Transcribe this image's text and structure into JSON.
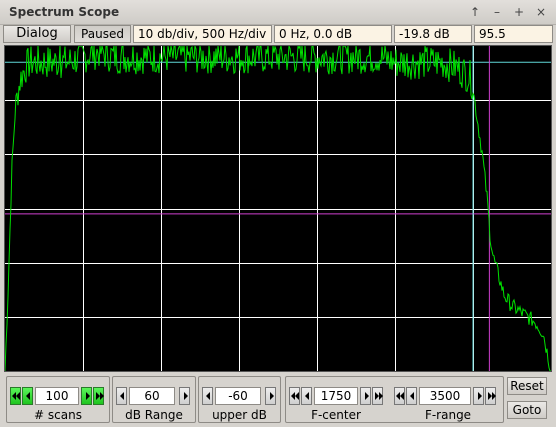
{
  "window": {
    "title": "Spectrum Scope",
    "controls": [
      "↑",
      "–",
      "+",
      "×"
    ]
  },
  "toolbar": {
    "dialog_label": "Dialog",
    "paused_label": "Paused",
    "scale_readout": "10 db/div, 500 Hz/div",
    "cursor_readout": "0 Hz, 0.0 dB",
    "level_readout": "-19.8 dB",
    "value_readout": "95.5"
  },
  "controls": {
    "scans": {
      "value": "100",
      "label": "# scans"
    },
    "db_range": {
      "value": "60",
      "label": "dB Range"
    },
    "upper_db": {
      "value": "-60",
      "label": "upper dB"
    },
    "f_center": {
      "value": "1750",
      "label": "F-center"
    },
    "f_range": {
      "value": "3500",
      "label": "F-range"
    },
    "reset_label": "Reset",
    "goto_label": "Goto"
  },
  "colors": {
    "trace": "#00e000",
    "grid": "#ffffff",
    "marker_cyan": "#60d8d8",
    "marker_magenta": "#d040d0",
    "plot_bg": "#000000",
    "active_button": "#22dd22"
  },
  "chart_data": {
    "type": "line",
    "x_unit": "Hz",
    "y_unit": "dB",
    "xlim": [
      0,
      3500
    ],
    "ylim": [
      -120,
      -60
    ],
    "x_major_div_hz": 500,
    "y_major_div_db": 10,
    "grid": true,
    "markers": {
      "cyan_x_hz": 3000,
      "magenta_x_hz": 3105,
      "cyan_y_db": -63,
      "magenta_y_db": -91
    },
    "series": [
      {
        "x": [
          0,
          20,
          45,
          70,
          100,
          130,
          160,
          200,
          300,
          400,
          500,
          600,
          700,
          800,
          900,
          1000,
          1100,
          1200,
          1300,
          1400,
          1500,
          1600,
          1700,
          1800,
          1900,
          2000,
          2100,
          2200,
          2300,
          2400,
          2500,
          2600,
          2700,
          2800,
          2900,
          2950,
          2990,
          3010,
          3030,
          3060,
          3090,
          3110,
          3130,
          3160,
          3200,
          3250,
          3300,
          3350,
          3400,
          3450,
          3500
        ],
        "y": [
          -120,
          -105,
          -82,
          -70,
          -66,
          -64,
          -63,
          -63,
          -63,
          -63,
          -62,
          -61,
          -62,
          -62,
          -62,
          -62,
          -62,
          -62,
          -62,
          -62,
          -62,
          -62,
          -62,
          -62,
          -62,
          -62,
          -62,
          -62,
          -62,
          -62,
          -63,
          -63,
          -63,
          -63,
          -64,
          -65,
          -66,
          -70,
          -74,
          -80,
          -88,
          -95,
          -99,
          -102,
          -106,
          -108,
          -109,
          -110,
          -111,
          -113,
          -120
        ]
      }
    ]
  }
}
